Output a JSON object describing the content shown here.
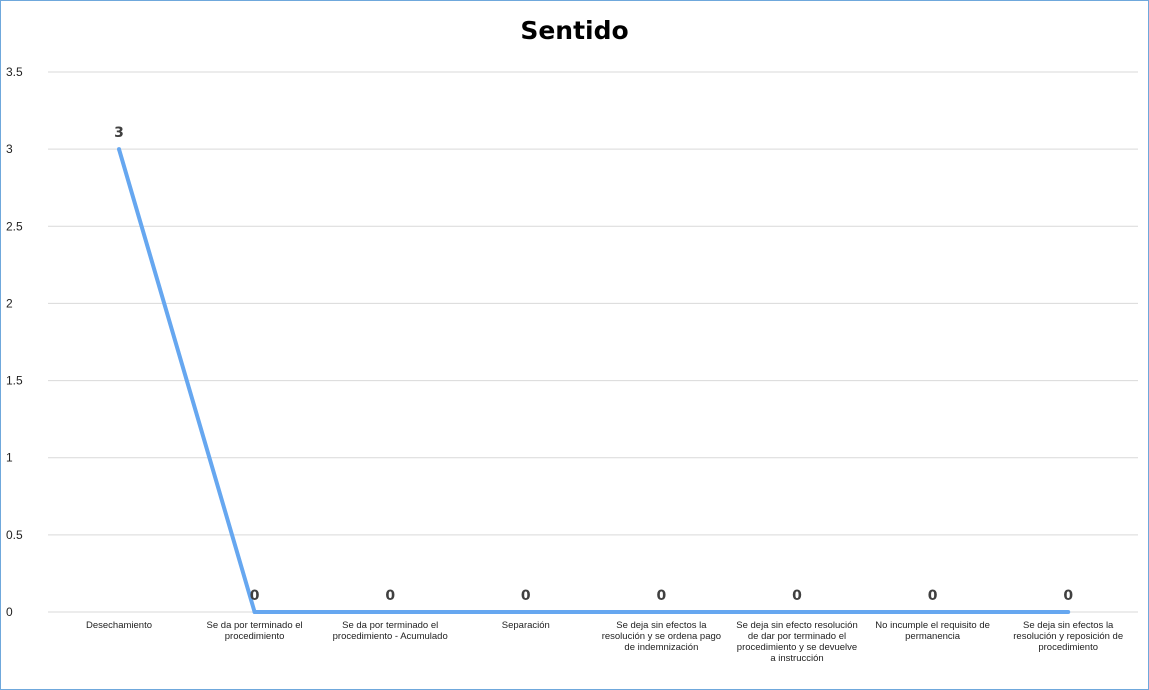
{
  "chart_data": {
    "type": "line",
    "title": "Sentido",
    "xlabel": "",
    "ylabel": "",
    "ylim": [
      0,
      3.5
    ],
    "yticks": [
      "0",
      "0.5",
      "1",
      "1.5",
      "2",
      "2.5",
      "3",
      "3.5"
    ],
    "grid": true,
    "categories": [
      "Desechamiento",
      "Se da por terminado el procedimiento",
      "Se da por terminado el procedimiento - Acumulado",
      "Separación",
      "Se deja sin efectos la resolución y se ordena pago de indemnización",
      "Se deja sin efecto resolución de dar por terminado el procedimiento y se devuelve a instrucción",
      "No incumple el requisito de permanencia",
      "Se deja sin efectos la resolución y reposición de procedimiento"
    ],
    "series": [
      {
        "name": "",
        "values": [
          3,
          0,
          0,
          0,
          0,
          0,
          0,
          0
        ],
        "labels": [
          "3",
          "0",
          "0",
          "0",
          "0",
          "0",
          "0",
          "0"
        ]
      }
    ],
    "colors": {
      "line": "#66a7f0",
      "grid": "#d9d9d9"
    }
  }
}
